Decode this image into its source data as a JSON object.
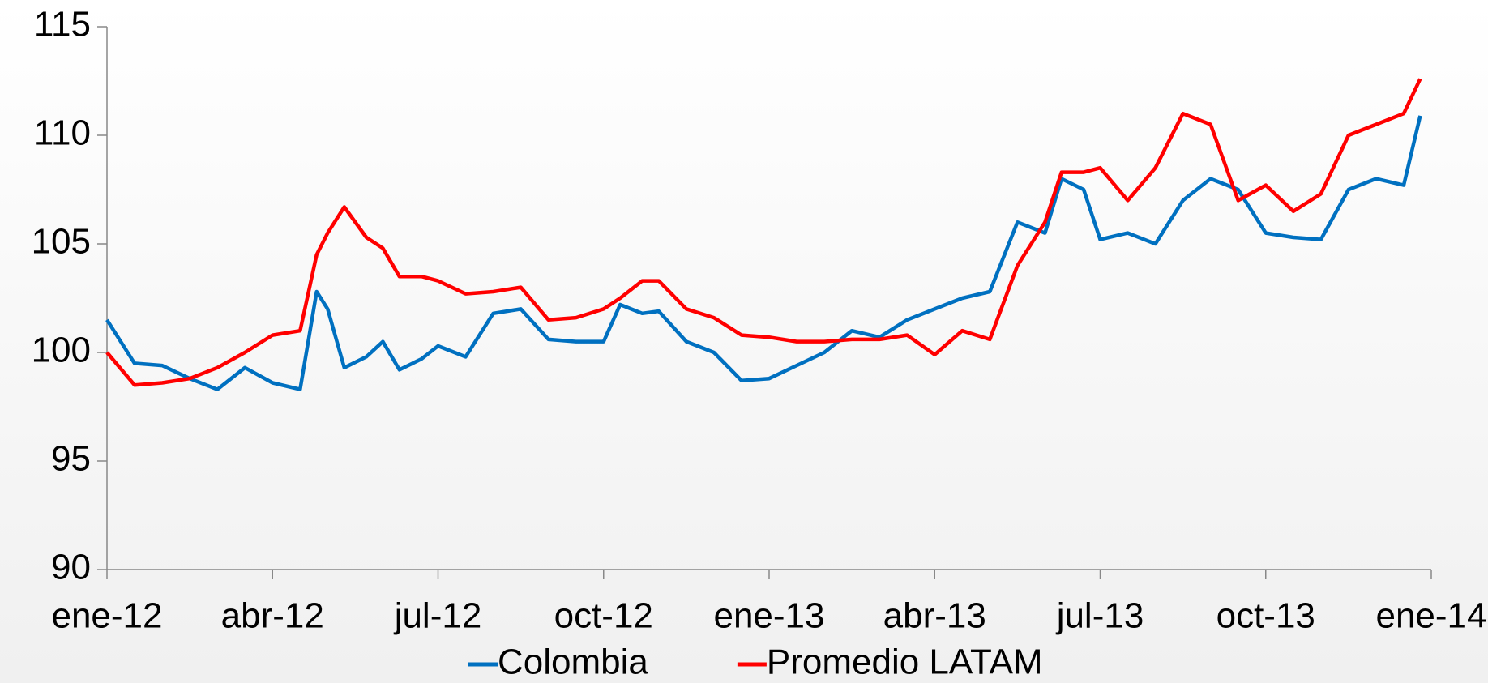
{
  "chart_data": {
    "type": "line",
    "x": [
      0,
      0.5,
      1,
      1.5,
      2,
      2.5,
      3,
      3.5,
      3.8,
      4,
      4.3,
      4.7,
      5,
      5.3,
      5.7,
      6,
      6.5,
      7,
      7.5,
      8,
      8.5,
      9,
      9.3,
      9.7,
      10,
      10.5,
      11,
      11.5,
      12,
      12.5,
      13,
      13.5,
      14,
      14.5,
      15,
      15.5,
      16,
      16.5,
      17,
      17.3,
      17.7,
      18,
      18.5,
      19,
      19.5,
      20,
      20.5,
      21,
      21.5,
      22,
      22.5,
      23,
      23.5,
      23.8
    ],
    "series": [
      {
        "name": "Colombia",
        "color": "#0070c0",
        "values": [
          101.5,
          99.5,
          99.4,
          98.8,
          98.3,
          99.3,
          98.6,
          98.3,
          102.8,
          102,
          99.3,
          99.8,
          100.5,
          99.2,
          99.7,
          100.3,
          99.8,
          101.8,
          102,
          100.6,
          100.5,
          100.5,
          102.2,
          101.8,
          101.9,
          100.5,
          100,
          98.7,
          98.8,
          99.4,
          100,
          101,
          100.7,
          101.5,
          102,
          102.5,
          102.8,
          106,
          105.5,
          108,
          107.5,
          105.2,
          105.5,
          105,
          107,
          108,
          107.5,
          105.5,
          105.3,
          105.2,
          107.5,
          108,
          107.7,
          110.9
        ]
      },
      {
        "name": "Promedio LATAM",
        "color": "#ff0000",
        "values": [
          100,
          98.5,
          98.6,
          98.8,
          99.3,
          100,
          100.8,
          101,
          104.5,
          105.5,
          106.7,
          105.3,
          104.8,
          103.5,
          103.5,
          103.3,
          102.7,
          102.8,
          103,
          101.5,
          101.6,
          102,
          102.5,
          103.3,
          103.3,
          102,
          101.6,
          100.8,
          100.7,
          100.5,
          100.5,
          100.6,
          100.6,
          100.8,
          99.9,
          101,
          100.6,
          104,
          106,
          108.3,
          108.3,
          108.5,
          107,
          108.5,
          111,
          110.5,
          107,
          107.7,
          106.5,
          107.3,
          110,
          110.5,
          111,
          112.6
        ]
      }
    ],
    "xlim": [
      0,
      24
    ],
    "xticks": [
      {
        "value": 0,
        "label": "ene-12"
      },
      {
        "value": 3,
        "label": "abr-12"
      },
      {
        "value": 6,
        "label": "jul-12"
      },
      {
        "value": 9,
        "label": "oct-12"
      },
      {
        "value": 12,
        "label": "ene-13"
      },
      {
        "value": 15,
        "label": "abr-13"
      },
      {
        "value": 18,
        "label": "jul-13"
      },
      {
        "value": 21,
        "label": "oct-13"
      },
      {
        "value": 24,
        "label": "ene-14"
      }
    ],
    "ylim": [
      90,
      115
    ],
    "yticks": [
      90,
      95,
      100,
      105,
      110,
      115
    ],
    "legend": "bottom"
  }
}
